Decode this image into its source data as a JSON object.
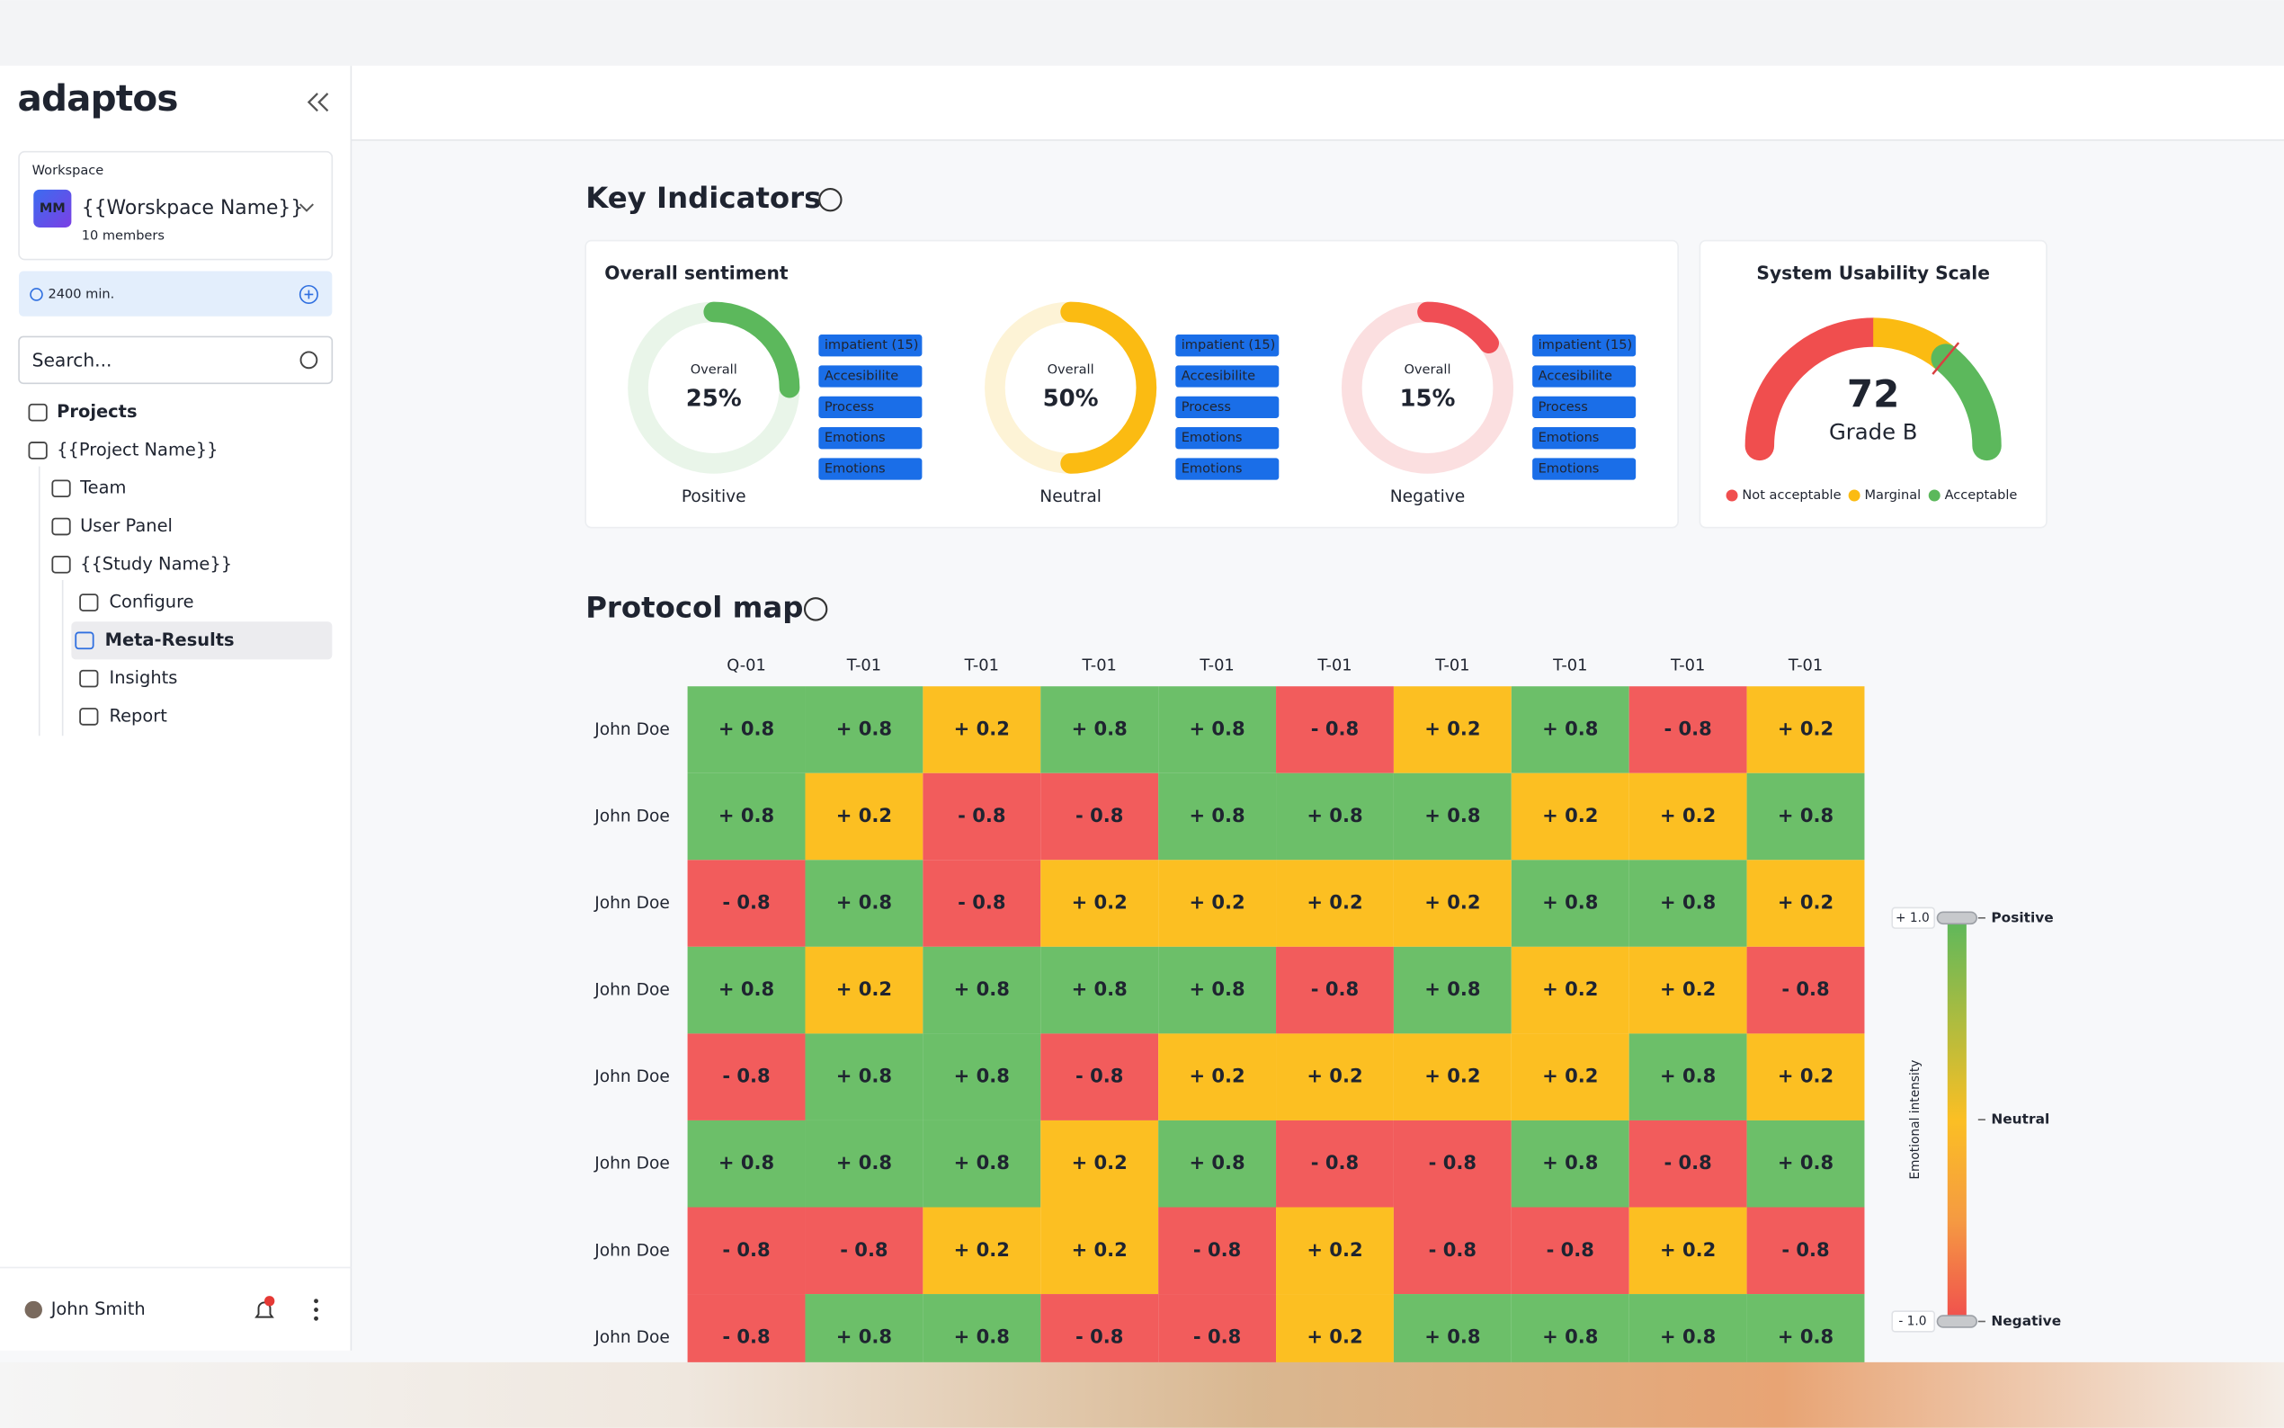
{
  "app": {
    "logo": "adaptos",
    "workspace_label": "Workspace",
    "workspace_initials": "MM",
    "workspace_name": "{{Worskpace Name}}",
    "workspace_members": "10 members",
    "minutes": "2400 min.",
    "search_placeholder": "Search...",
    "nav": [
      "Projects",
      "{{Project Name}}",
      "Team",
      "User Panel",
      "{{Study Name}}",
      "Configure",
      "Meta-Results",
      "Insights",
      "Report"
    ],
    "user": "John Smith"
  },
  "key_indicators": {
    "title": "Key Indicators",
    "sentiment": {
      "title": "Overall sentiment",
      "items": [
        {
          "name": "Positive",
          "label": "Overall",
          "value": 25,
          "value_label": "25%",
          "color": "#5cb85c",
          "track": "#e9f5e9",
          "tags": [
            "impatient (15)",
            "Accesibilite",
            "Process",
            "Emotions",
            "Emotions"
          ]
        },
        {
          "name": "Neutral",
          "label": "Overall",
          "value": 50,
          "value_label": "50%",
          "color": "#fbbb12",
          "track": "#fdf3d6",
          "tags": [
            "impatient (15)",
            "Accesibilite",
            "Process",
            "Emotions",
            "Emotions"
          ]
        },
        {
          "name": "Negative",
          "label": "Overall",
          "value": 15,
          "value_label": "15%",
          "color": "#f04e55",
          "track": "#fbdfe0",
          "tags": [
            "impatient (15)",
            "Accesibilite",
            "Process",
            "Emotions",
            "Emotions"
          ]
        }
      ]
    },
    "sus": {
      "title": "System Usability Scale",
      "type": "gauge",
      "value": 72,
      "grade": "Grade B",
      "range": [
        0,
        100
      ],
      "bands": [
        {
          "name": "Not acceptable",
          "color": "#f04e4e",
          "to": 50
        },
        {
          "name": "Marginal",
          "color": "#fbbb12",
          "to": 72
        },
        {
          "name": "Acceptable",
          "color": "#5cb85c",
          "to": 100
        }
      ]
    }
  },
  "protocol_map": {
    "title": "Protocol map",
    "columns": [
      "Q-01",
      "T-01",
      "T-01",
      "T-01",
      "T-01",
      "T-01",
      "T-01",
      "T-01",
      "T-01",
      "T-01"
    ],
    "rows": [
      {
        "name": "John Doe",
        "cells": [
          {
            "value": 0.8,
            "label": "+ 0.8"
          },
          {
            "value": 0.8,
            "label": "+ 0.8"
          },
          {
            "value": 0.2,
            "label": "+ 0.2"
          },
          {
            "value": 0.8,
            "label": "+ 0.8"
          },
          {
            "value": 0.8,
            "label": "+ 0.8"
          },
          {
            "value": -0.8,
            "label": "- 0.8"
          },
          {
            "value": 0.2,
            "label": "+ 0.2"
          },
          {
            "value": 0.8,
            "label": "+ 0.8"
          },
          {
            "value": -0.8,
            "label": "- 0.8"
          },
          {
            "value": 0.2,
            "label": "+ 0.2"
          }
        ]
      },
      {
        "name": "John Doe",
        "cells": [
          {
            "value": 0.8,
            "label": "+ 0.8"
          },
          {
            "value": 0.2,
            "label": "+ 0.2"
          },
          {
            "value": -0.8,
            "label": "- 0.8"
          },
          {
            "value": -0.8,
            "label": "- 0.8"
          },
          {
            "value": 0.8,
            "label": "+ 0.8"
          },
          {
            "value": 0.8,
            "label": "+ 0.8"
          },
          {
            "value": 0.8,
            "label": "+ 0.8"
          },
          {
            "value": 0.2,
            "label": "+ 0.2"
          },
          {
            "value": 0.2,
            "label": "+ 0.2"
          },
          {
            "value": 0.8,
            "label": "+ 0.8"
          }
        ]
      },
      {
        "name": "John Doe",
        "cells": [
          {
            "value": -0.8,
            "label": "- 0.8"
          },
          {
            "value": 0.8,
            "label": "+ 0.8"
          },
          {
            "value": -0.8,
            "label": "- 0.8"
          },
          {
            "value": 0.2,
            "label": "+ 0.2"
          },
          {
            "value": 0.2,
            "label": "+ 0.2"
          },
          {
            "value": 0.2,
            "label": "+ 0.2"
          },
          {
            "value": 0.2,
            "label": "+ 0.2"
          },
          {
            "value": 0.8,
            "label": "+ 0.8"
          },
          {
            "value": 0.8,
            "label": "+ 0.8"
          },
          {
            "value": 0.2,
            "label": "+ 0.2"
          }
        ]
      },
      {
        "name": "John Doe",
        "cells": [
          {
            "value": 0.8,
            "label": "+ 0.8"
          },
          {
            "value": 0.2,
            "label": "+ 0.2"
          },
          {
            "value": 0.8,
            "label": "+ 0.8"
          },
          {
            "value": 0.8,
            "label": "+ 0.8"
          },
          {
            "value": 0.8,
            "label": "+ 0.8"
          },
          {
            "value": -0.8,
            "label": "- 0.8"
          },
          {
            "value": 0.8,
            "label": "+ 0.8"
          },
          {
            "value": 0.2,
            "label": "+ 0.2"
          },
          {
            "value": 0.2,
            "label": "+ 0.2"
          },
          {
            "value": -0.8,
            "label": "- 0.8"
          }
        ]
      },
      {
        "name": "John Doe",
        "cells": [
          {
            "value": -0.8,
            "label": "- 0.8"
          },
          {
            "value": 0.8,
            "label": "+ 0.8"
          },
          {
            "value": 0.8,
            "label": "+ 0.8"
          },
          {
            "value": -0.8,
            "label": "- 0.8"
          },
          {
            "value": 0.2,
            "label": "+ 0.2"
          },
          {
            "value": 0.2,
            "label": "+ 0.2"
          },
          {
            "value": 0.2,
            "label": "+ 0.2"
          },
          {
            "value": 0.2,
            "label": "+ 0.2"
          },
          {
            "value": 0.8,
            "label": "+ 0.8"
          },
          {
            "value": 0.2,
            "label": "+ 0.2"
          }
        ]
      },
      {
        "name": "John Doe",
        "cells": [
          {
            "value": 0.8,
            "label": "+ 0.8"
          },
          {
            "value": 0.8,
            "label": "+ 0.8"
          },
          {
            "value": 0.8,
            "label": "+ 0.8"
          },
          {
            "value": 0.2,
            "label": "+ 0.2"
          },
          {
            "value": 0.8,
            "label": "+ 0.8"
          },
          {
            "value": -0.8,
            "label": "- 0.8"
          },
          {
            "value": -0.8,
            "label": "- 0.8"
          },
          {
            "value": 0.8,
            "label": "+ 0.8"
          },
          {
            "value": -0.8,
            "label": "- 0.8"
          },
          {
            "value": 0.8,
            "label": "+ 0.8"
          }
        ]
      },
      {
        "name": "John Doe",
        "cells": [
          {
            "value": -0.8,
            "label": "- 0.8"
          },
          {
            "value": -0.8,
            "label": "- 0.8"
          },
          {
            "value": 0.2,
            "label": "+ 0.2"
          },
          {
            "value": 0.2,
            "label": "+ 0.2"
          },
          {
            "value": -0.8,
            "label": "- 0.8"
          },
          {
            "value": 0.2,
            "label": "+ 0.2"
          },
          {
            "value": -0.8,
            "label": "- 0.8"
          },
          {
            "value": -0.8,
            "label": "- 0.8"
          },
          {
            "value": 0.2,
            "label": "+ 0.2"
          },
          {
            "value": -0.8,
            "label": "- 0.8"
          }
        ]
      },
      {
        "name": "John Doe",
        "cells": [
          {
            "value": -0.8,
            "label": "- 0.8"
          },
          {
            "value": 0.8,
            "label": "+ 0.8"
          },
          {
            "value": 0.8,
            "label": "+ 0.8"
          },
          {
            "value": -0.8,
            "label": "- 0.8"
          },
          {
            "value": -0.8,
            "label": "- 0.8"
          },
          {
            "value": 0.2,
            "label": "+ 0.2"
          },
          {
            "value": 0.8,
            "label": "+ 0.8"
          },
          {
            "value": 0.8,
            "label": "+ 0.8"
          },
          {
            "value": 0.8,
            "label": "+ 0.8"
          },
          {
            "value": 0.8,
            "label": "+ 0.8"
          }
        ]
      }
    ],
    "scale": {
      "axis_label": "Emotional intensity",
      "range": [
        -1,
        1
      ],
      "ticks": [
        {
          "value": 1,
          "label": "+ 1.0"
        },
        {
          "value": -1,
          "label": "- 1.0"
        }
      ],
      "levels": [
        {
          "name": "Positive",
          "value": 1
        },
        {
          "name": "Neutral",
          "value": 0
        },
        {
          "name": "Negative",
          "value": -1
        }
      ]
    }
  }
}
